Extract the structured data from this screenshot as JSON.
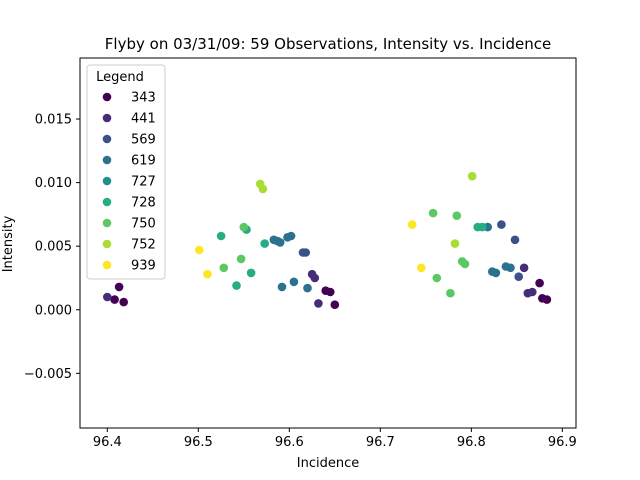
{
  "chart_data": {
    "type": "scatter",
    "title": "Flyby on 03/31/09: 59 Observations, Intensity vs. Incidence",
    "xlabel": "Incidence",
    "ylabel": "Intensity",
    "xlim": [
      96.37,
      96.915
    ],
    "ylim": [
      -0.0093,
      0.0198
    ],
    "xticks": [
      96.4,
      96.5,
      96.6,
      96.7,
      96.8,
      96.9
    ],
    "xtick_labels": [
      "96.4",
      "96.5",
      "96.6",
      "96.7",
      "96.8",
      "96.9"
    ],
    "yticks": [
      -0.005,
      0.0,
      0.005,
      0.01,
      0.015
    ],
    "ytick_labels": [
      "−0.005",
      "0.000",
      "0.005",
      "0.010",
      "0.015"
    ],
    "grid": false,
    "legend": {
      "title": "Legend",
      "placement": "upper-left"
    },
    "series": [
      {
        "name": "343",
        "color": "#440154",
        "points": [
          [
            96.413,
            0.0018
          ],
          [
            96.408,
            0.0008
          ],
          [
            96.418,
            0.0006
          ],
          [
            96.64,
            0.0015
          ],
          [
            96.645,
            0.0014
          ],
          [
            96.65,
            0.0004
          ],
          [
            96.875,
            0.0021
          ],
          [
            96.878,
            0.0009
          ],
          [
            96.883,
            0.0008
          ]
        ]
      },
      {
        "name": "441",
        "color": "#472c7a",
        "points": [
          [
            96.4,
            0.001
          ],
          [
            96.625,
            0.0028
          ],
          [
            96.628,
            0.0025
          ],
          [
            96.632,
            0.0005
          ],
          [
            96.858,
            0.0033
          ],
          [
            96.862,
            0.0013
          ],
          [
            96.867,
            0.0014
          ]
        ]
      },
      {
        "name": "569",
        "color": "#3b518b",
        "points": [
          [
            96.615,
            0.0045
          ],
          [
            96.618,
            0.0045
          ],
          [
            96.833,
            0.0067
          ],
          [
            96.848,
            0.0055
          ],
          [
            96.852,
            0.0026
          ]
        ]
      },
      {
        "name": "619",
        "color": "#2c718e",
        "points": [
          [
            96.583,
            0.0055
          ],
          [
            96.587,
            0.0054
          ],
          [
            96.59,
            0.0053
          ],
          [
            96.598,
            0.0057
          ],
          [
            96.602,
            0.0058
          ],
          [
            96.592,
            0.0018
          ],
          [
            96.605,
            0.0022
          ],
          [
            96.62,
            0.0017
          ],
          [
            96.818,
            0.0065
          ],
          [
            96.823,
            0.003
          ],
          [
            96.827,
            0.0029
          ],
          [
            96.838,
            0.0034
          ],
          [
            96.843,
            0.0033
          ]
        ]
      },
      {
        "name": "727",
        "color": "#21908d",
        "points": []
      },
      {
        "name": "728",
        "color": "#27ad81",
        "points": [
          [
            96.525,
            0.0058
          ],
          [
            96.553,
            0.0063
          ],
          [
            96.573,
            0.0052
          ],
          [
            96.542,
            0.0019
          ],
          [
            96.558,
            0.0029
          ],
          [
            96.807,
            0.0065
          ],
          [
            96.812,
            0.0065
          ]
        ]
      },
      {
        "name": "750",
        "color": "#5cc863",
        "points": [
          [
            96.547,
            0.004
          ],
          [
            96.55,
            0.0065
          ],
          [
            96.528,
            0.0033
          ],
          [
            96.758,
            0.0076
          ],
          [
            96.784,
            0.0074
          ],
          [
            96.79,
            0.0038
          ],
          [
            96.793,
            0.0036
          ],
          [
            96.762,
            0.0025
          ],
          [
            96.777,
            0.0013
          ]
        ]
      },
      {
        "name": "752",
        "color": "#aadc32",
        "points": [
          [
            96.568,
            0.0099
          ],
          [
            96.571,
            0.0095
          ],
          [
            96.801,
            0.0105
          ],
          [
            96.782,
            0.0052
          ]
        ]
      },
      {
        "name": "939",
        "color": "#fde725",
        "points": [
          [
            96.501,
            0.0047
          ],
          [
            96.51,
            0.0028
          ],
          [
            96.735,
            0.0067
          ],
          [
            96.745,
            0.0033
          ]
        ]
      }
    ]
  }
}
